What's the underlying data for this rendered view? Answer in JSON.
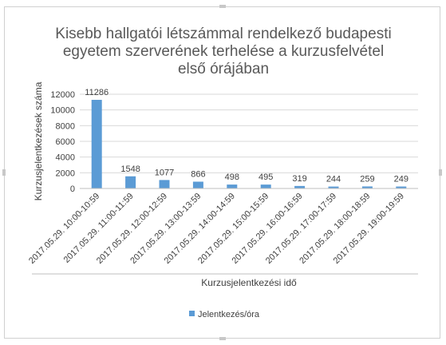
{
  "chart_data": {
    "type": "bar",
    "title_lines": [
      "Kisebb hallgatói létszámmal rendelkező budapesti",
      "egyetem szerverének terhelése a kurzusfelvétel",
      "első órájában"
    ],
    "categories": [
      "2017.05.29. 10:00-10:59",
      "2017.05.29. 11:00-11:59",
      "2017.05.29. 12:00-12:59",
      "2017.05.29. 13:00-13:59",
      "2017.05.29. 14:00-14:59",
      "2017.05.29. 15:00-15:59",
      "2017.05.29. 16:00-16:59",
      "2017.05.29. 17:00-17:59",
      "2017.05.29. 18:00-18:59",
      "2017.05.29. 19:00-19:59"
    ],
    "series": [
      {
        "name": "Jelentkezés/óra",
        "values": [
          11286,
          1548,
          1077,
          866,
          498,
          495,
          319,
          244,
          259,
          249
        ],
        "color": "#5b9bd5"
      }
    ],
    "xlabel": "Kurzusjelentkezési idő",
    "ylabel": "Kurzusjelentkezések száma",
    "ylim": [
      0,
      12000
    ],
    "yticks": [
      0,
      2000,
      4000,
      6000,
      8000,
      10000,
      12000
    ],
    "grid": true,
    "legend_position": "bottom"
  }
}
